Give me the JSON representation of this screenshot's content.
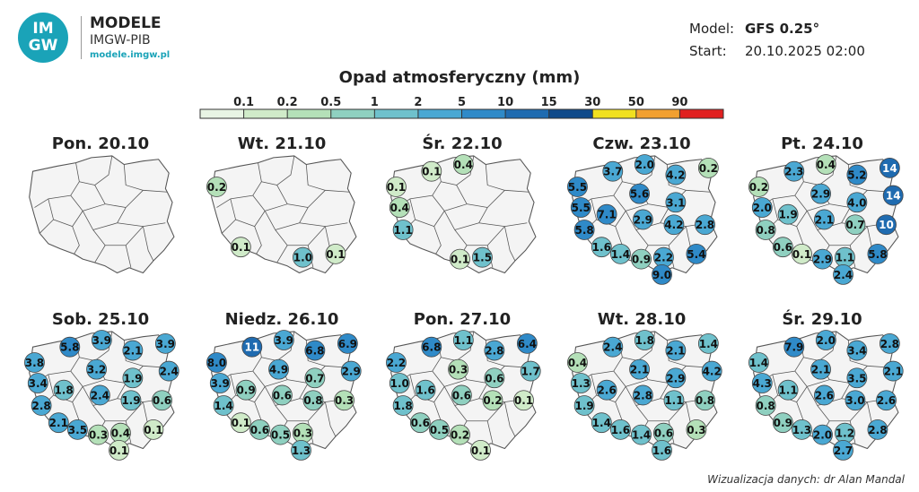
{
  "logo": {
    "badge": "IM GW",
    "title": "MODELE",
    "subtitle": "IMGW-PIB",
    "url": "modele.imgw.pl"
  },
  "model": {
    "model_label": "Model:",
    "model_value": "GFS 0.25°",
    "start_label": "Start:",
    "start_value": "20.10.2025 02:00"
  },
  "title": "Opad atmosferyczny (mm)",
  "credit": "Wizualizacja danych: dr Alan Mandal",
  "chart_data": {
    "type": "map",
    "legend": {
      "ticks": [
        "0.1",
        "0.2",
        "0.5",
        "1",
        "2",
        "5",
        "10",
        "15",
        "30",
        "50",
        "90"
      ],
      "colors": [
        "#e8f4e4",
        "#d0ebc9",
        "#b4e0b8",
        "#8fd0c0",
        "#6fc1cc",
        "#4aa8d3",
        "#2f8ac8",
        "#1f6bb0",
        "#0f4a8a",
        "#f0e020",
        "#f2a030",
        "#e02020"
      ]
    },
    "days": [
      {
        "label": "Pon. 20.10",
        "values": []
      },
      {
        "label": "Wt. 21.10",
        "values": [
          {
            "loc": "Szczecin",
            "v": "0.2"
          },
          {
            "loc": "Wroclaw",
            "v": "0.1"
          },
          {
            "loc": "Krakow",
            "v": "1.0"
          },
          {
            "loc": "Rzeszow",
            "v": "0.1"
          }
        ]
      },
      {
        "label": "Śr. 22.10",
        "values": [
          {
            "loc": "Koszalin",
            "v": "0.1"
          },
          {
            "loc": "Gdansk",
            "v": "0.4"
          },
          {
            "loc": "Szczecin",
            "v": "0.1"
          },
          {
            "loc": "Gorzow",
            "v": "0.4"
          },
          {
            "loc": "Pila",
            "v": "0.1"
          },
          {
            "loc": "ZielonaGora",
            "v": "1.1"
          },
          {
            "loc": "Legnica",
            "v": "0.1"
          },
          {
            "loc": "Katowice",
            "v": "0.1"
          },
          {
            "loc": "Krakow",
            "v": "1.5"
          }
        ]
      },
      {
        "label": "Czw. 23.10",
        "values": [
          {
            "loc": "Koszalin",
            "v": "3.7"
          },
          {
            "loc": "Gdansk",
            "v": "2.0"
          },
          {
            "loc": "Olsztyn",
            "v": "4.2"
          },
          {
            "loc": "Suwalki",
            "v": "0.2"
          },
          {
            "loc": "Szczecin",
            "v": "5.5"
          },
          {
            "loc": "Bydgoszcz",
            "v": "5.6"
          },
          {
            "loc": "Gorzow",
            "v": "5.5"
          },
          {
            "loc": "Poznan",
            "v": "7.1"
          },
          {
            "loc": "Warszawa",
            "v": "3.1"
          },
          {
            "loc": "ZielonaGora",
            "v": "5.8"
          },
          {
            "loc": "Lodz",
            "v": "2.9"
          },
          {
            "loc": "Wroclaw",
            "v": "1.6"
          },
          {
            "loc": "Kielce",
            "v": "4.2"
          },
          {
            "loc": "Lublin",
            "v": "2.8"
          },
          {
            "loc": "Opole",
            "v": "1.4"
          },
          {
            "loc": "Katowice",
            "v": "0.9"
          },
          {
            "loc": "Krakow",
            "v": "2.2"
          },
          {
            "loc": "Rzeszow",
            "v": "5.4"
          },
          {
            "loc": "NowySacz",
            "v": "9.0"
          }
        ]
      },
      {
        "label": "Pt. 24.10",
        "values": [
          {
            "loc": "Koszalin",
            "v": "2.3"
          },
          {
            "loc": "Gdansk",
            "v": "0.4"
          },
          {
            "loc": "Olsztyn",
            "v": "5.2"
          },
          {
            "loc": "Suwalki",
            "v": "14"
          },
          {
            "loc": "Szczecin",
            "v": "0.2"
          },
          {
            "loc": "Bydgoszcz",
            "v": "2.9"
          },
          {
            "loc": "Bialystok",
            "v": "14"
          },
          {
            "loc": "Gorzow",
            "v": "2.0"
          },
          {
            "loc": "Poznan",
            "v": "1.9"
          },
          {
            "loc": "Warszawa",
            "v": "4.0"
          },
          {
            "loc": "ZielonaGora",
            "v": "0.8"
          },
          {
            "loc": "Lodz",
            "v": "2.1"
          },
          {
            "loc": "Wroclaw",
            "v": "0.6"
          },
          {
            "loc": "Kielce",
            "v": "0.7"
          },
          {
            "loc": "Lublin",
            "v": "10"
          },
          {
            "loc": "Opole",
            "v": "0.1"
          },
          {
            "loc": "Katowice",
            "v": "2.9"
          },
          {
            "loc": "Krakow",
            "v": "1.1"
          },
          {
            "loc": "Rzeszow",
            "v": "5.8"
          },
          {
            "loc": "NowySacz",
            "v": "2.4"
          }
        ]
      },
      {
        "label": "Sob. 25.10",
        "values": [
          {
            "loc": "Koszalin",
            "v": "5.8"
          },
          {
            "loc": "Gdansk",
            "v": "3.9"
          },
          {
            "loc": "Olsztyn",
            "v": "2.1"
          },
          {
            "loc": "Suwalki",
            "v": "3.9"
          },
          {
            "loc": "Szczecin",
            "v": "3.8"
          },
          {
            "loc": "Bydgoszcz",
            "v": "3.2"
          },
          {
            "loc": "Bialystok",
            "v": "2.4"
          },
          {
            "loc": "Gorzow",
            "v": "3.4"
          },
          {
            "loc": "Poznan",
            "v": "1.8"
          },
          {
            "loc": "Warszawa",
            "v": "1.9"
          },
          {
            "loc": "ZielonaGora",
            "v": "2.8"
          },
          {
            "loc": "Lodz",
            "v": "2.4"
          },
          {
            "loc": "Wroclaw",
            "v": "2.1"
          },
          {
            "loc": "Kielce",
            "v": "1.9"
          },
          {
            "loc": "Lublin",
            "v": "0.6"
          },
          {
            "loc": "Opole",
            "v": "3.5"
          },
          {
            "loc": "Katowice",
            "v": "0.3"
          },
          {
            "loc": "Krakow",
            "v": "0.4"
          },
          {
            "loc": "Rzeszow",
            "v": "0.1"
          },
          {
            "loc": "NowySacz",
            "v": "0.1"
          }
        ]
      },
      {
        "label": "Niedz. 26.10",
        "values": [
          {
            "loc": "Koszalin",
            "v": "11"
          },
          {
            "loc": "Gdansk",
            "v": "3.9"
          },
          {
            "loc": "Olsztyn",
            "v": "6.8"
          },
          {
            "loc": "Suwalki",
            "v": "6.9"
          },
          {
            "loc": "Szczecin",
            "v": "8.0"
          },
          {
            "loc": "Bydgoszcz",
            "v": "4.9"
          },
          {
            "loc": "Bialystok",
            "v": "2.9"
          },
          {
            "loc": "Gorzow",
            "v": "3.9"
          },
          {
            "loc": "Poznan",
            "v": "0.9"
          },
          {
            "loc": "Warszawa",
            "v": "0.7"
          },
          {
            "loc": "ZielonaGora",
            "v": "1.4"
          },
          {
            "loc": "Lodz",
            "v": "0.6"
          },
          {
            "loc": "Wroclaw",
            "v": "0.1"
          },
          {
            "loc": "Kielce",
            "v": "0.8"
          },
          {
            "loc": "Lublin",
            "v": "0.3"
          },
          {
            "loc": "Opole",
            "v": "0.6"
          },
          {
            "loc": "Katowice",
            "v": "0.5"
          },
          {
            "loc": "Krakow",
            "v": "0.3"
          },
          {
            "loc": "NowySacz",
            "v": "1.3"
          }
        ]
      },
      {
        "label": "Pon. 27.10",
        "values": [
          {
            "loc": "Koszalin",
            "v": "6.8"
          },
          {
            "loc": "Gdansk",
            "v": "1.1"
          },
          {
            "loc": "Olsztyn",
            "v": "2.8"
          },
          {
            "loc": "Suwalki",
            "v": "6.4"
          },
          {
            "loc": "Szczecin",
            "v": "2.2"
          },
          {
            "loc": "Bydgoszcz",
            "v": "0.3"
          },
          {
            "loc": "Bialystok",
            "v": "1.7"
          },
          {
            "loc": "Gorzow",
            "v": "1.0"
          },
          {
            "loc": "Poznan",
            "v": "1.6"
          },
          {
            "loc": "Warszawa",
            "v": "0.6"
          },
          {
            "loc": "ZielonaGora",
            "v": "1.8"
          },
          {
            "loc": "Lodz",
            "v": "0.6"
          },
          {
            "loc": "Wroclaw",
            "v": "0.6"
          },
          {
            "loc": "Kielce",
            "v": "0.2"
          },
          {
            "loc": "Lublin",
            "v": "0.1"
          },
          {
            "loc": "Opole",
            "v": "0.5"
          },
          {
            "loc": "Katowice",
            "v": "0.2"
          },
          {
            "loc": "NowySacz",
            "v": "0.1"
          }
        ]
      },
      {
        "label": "Wt. 28.10",
        "values": [
          {
            "loc": "Koszalin",
            "v": "2.4"
          },
          {
            "loc": "Gdansk",
            "v": "1.8"
          },
          {
            "loc": "Olsztyn",
            "v": "2.1"
          },
          {
            "loc": "Suwalki",
            "v": "1.4"
          },
          {
            "loc": "Szczecin",
            "v": "0.4"
          },
          {
            "loc": "Bydgoszcz",
            "v": "2.1"
          },
          {
            "loc": "Bialystok",
            "v": "4.2"
          },
          {
            "loc": "Gorzow",
            "v": "1.3"
          },
          {
            "loc": "Poznan",
            "v": "2.6"
          },
          {
            "loc": "Warszawa",
            "v": "2.9"
          },
          {
            "loc": "ZielonaGora",
            "v": "1.9"
          },
          {
            "loc": "Lodz",
            "v": "2.8"
          },
          {
            "loc": "Wroclaw",
            "v": "1.4"
          },
          {
            "loc": "Kielce",
            "v": "1.1"
          },
          {
            "loc": "Lublin",
            "v": "0.8"
          },
          {
            "loc": "Opole",
            "v": "1.6"
          },
          {
            "loc": "Katowice",
            "v": "1.4"
          },
          {
            "loc": "Krakow",
            "v": "0.6"
          },
          {
            "loc": "Rzeszow",
            "v": "0.3"
          },
          {
            "loc": "NowySacz",
            "v": "1.6"
          }
        ]
      },
      {
        "label": "Śr. 29.10",
        "values": [
          {
            "loc": "Koszalin",
            "v": "7.9"
          },
          {
            "loc": "Gdansk",
            "v": "2.0"
          },
          {
            "loc": "Olsztyn",
            "v": "3.4"
          },
          {
            "loc": "Suwalki",
            "v": "2.8"
          },
          {
            "loc": "Szczecin",
            "v": "1.4"
          },
          {
            "loc": "Bydgoszcz",
            "v": "2.1"
          },
          {
            "loc": "Bialystok",
            "v": "2.1"
          },
          {
            "loc": "Gorzow",
            "v": "4.3"
          },
          {
            "loc": "Poznan",
            "v": "1.1"
          },
          {
            "loc": "Warszawa",
            "v": "3.5"
          },
          {
            "loc": "ZielonaGora",
            "v": "0.8"
          },
          {
            "loc": "Lodz",
            "v": "2.6"
          },
          {
            "loc": "Wroclaw",
            "v": "0.9"
          },
          {
            "loc": "Kielce",
            "v": "3.0"
          },
          {
            "loc": "Lublin",
            "v": "2.6"
          },
          {
            "loc": "Opole",
            "v": "1.3"
          },
          {
            "loc": "Katowice",
            "v": "2.0"
          },
          {
            "loc": "Krakow",
            "v": "1.2"
          },
          {
            "loc": "Rzeszow",
            "v": "2.8"
          },
          {
            "loc": "NowySacz",
            "v": "2.7"
          }
        ]
      }
    ]
  }
}
